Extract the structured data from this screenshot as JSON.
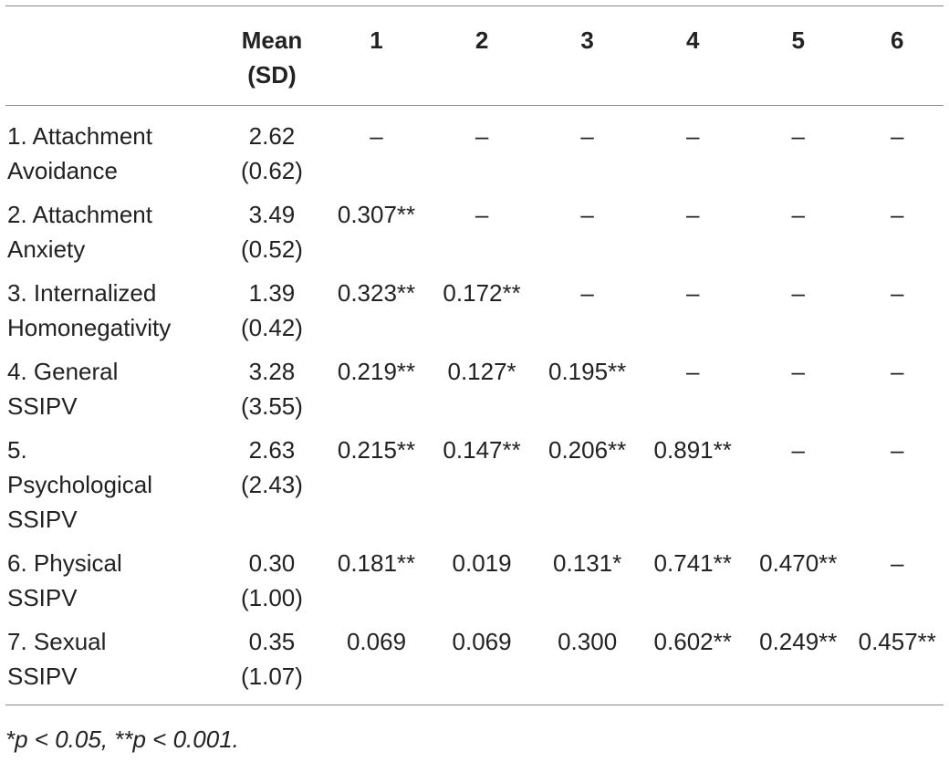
{
  "table": {
    "header": {
      "label": "",
      "mean_sd": [
        "Mean",
        "(SD)"
      ],
      "columns": [
        "1",
        "2",
        "3",
        "4",
        "5",
        "6"
      ]
    },
    "rows": [
      {
        "label": [
          "1. Attachment",
          "Avoidance"
        ],
        "mean": "2.62",
        "sd": "(0.62)",
        "cells": [
          "–",
          "–",
          "–",
          "–",
          "–",
          "–"
        ]
      },
      {
        "label": [
          "2. Attachment",
          "Anxiety"
        ],
        "mean": "3.49",
        "sd": "(0.52)",
        "cells": [
          "0.307**",
          "–",
          "–",
          "–",
          "–",
          "–"
        ]
      },
      {
        "label": [
          "3. Internalized",
          "Homonegativity"
        ],
        "mean": "1.39",
        "sd": "(0.42)",
        "cells": [
          "0.323**",
          "0.172**",
          "–",
          "–",
          "–",
          "–"
        ]
      },
      {
        "label": [
          "4. General",
          "SSIPV"
        ],
        "mean": "3.28",
        "sd": "(3.55)",
        "cells": [
          "0.219**",
          "0.127*",
          "0.195**",
          "–",
          "–",
          "–"
        ]
      },
      {
        "label": [
          "5.",
          "Psychological",
          "SSIPV"
        ],
        "mean": "2.63",
        "sd": "(2.43)",
        "cells": [
          "0.215**",
          "0.147**",
          "0.206**",
          "0.891**",
          "–",
          "–"
        ]
      },
      {
        "label": [
          "6. Physical",
          "SSIPV"
        ],
        "mean": "0.30",
        "sd": "(1.00)",
        "cells": [
          "0.181**",
          "0.019",
          "0.131*",
          "0.741**",
          "0.470**",
          "–"
        ]
      },
      {
        "label": [
          "7. Sexual",
          "SSIPV"
        ],
        "mean": "0.35",
        "sd": "(1.07)",
        "cells": [
          "0.069",
          "0.069",
          "0.300",
          "0.602**",
          "0.249**",
          "0.457**"
        ]
      }
    ],
    "footnote": "*p < 0.05, **p < 0.001."
  }
}
